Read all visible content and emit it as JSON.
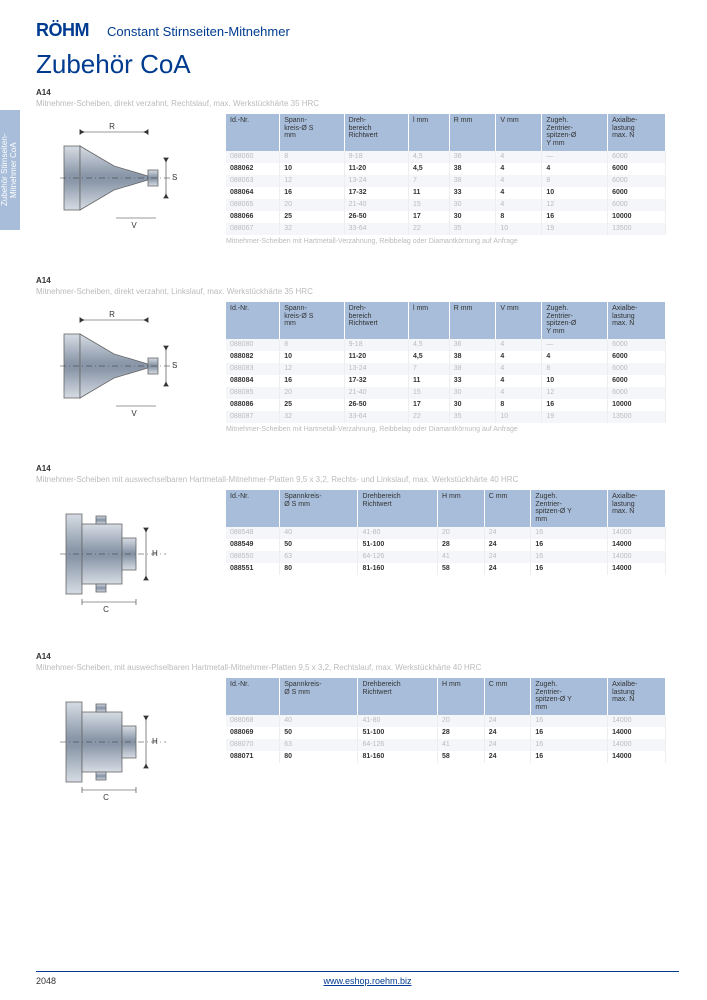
{
  "header": {
    "brand": "RÖHM",
    "title": "Constant Stirnseiten-Mitnehmer"
  },
  "page_title": "Zubehör CoA",
  "side_tab": "Zubehör Stirnseiten-\nMitnehmer CoA",
  "sections": [
    {
      "label": "A14",
      "desc": "Mitnehmer-Scheiben, direkt verzahnt, Rechtslauf, max. Werkstückhärte 35 HRC",
      "diagram": "A",
      "table": {
        "headers": [
          "Id.-Nr.",
          "Spann-\nkreis-Ø S\nmm",
          "Dreh-\nbereich\nRichtwert",
          "l mm",
          "R mm",
          "V mm",
          "Zugeh.\nZentrier-\nspitzen-Ø\nY mm",
          "Axialbe-\nlastung\nmax. N"
        ],
        "rows": [
          [
            "088060",
            "8",
            "9-18",
            "4,5",
            "36",
            "4",
            "—",
            "6000"
          ],
          [
            "088062",
            "10",
            "11-20",
            "4,5",
            "38",
            "4",
            "4",
            "6000"
          ],
          [
            "088063",
            "12",
            "13-24",
            "7",
            "38",
            "4",
            "8",
            "6000"
          ],
          [
            "088064",
            "16",
            "17-32",
            "11",
            "33",
            "4",
            "10",
            "6000"
          ],
          [
            "088065",
            "20",
            "21-40",
            "15",
            "30",
            "4",
            "12",
            "6000"
          ],
          [
            "088066",
            "25",
            "26-50",
            "17",
            "30",
            "8",
            "16",
            "10000"
          ],
          [
            "088067",
            "32",
            "33-64",
            "22",
            "35",
            "10",
            "19",
            "13500"
          ]
        ]
      },
      "note": "Mitnehmer-Scheiben mit Hartmetall-Verzahnung, Reibbelag oder Diamantkörnung auf Anfrage"
    },
    {
      "label": "A14",
      "desc": "Mitnehmer-Scheiben, direkt verzahnt, Linkslauf, max. Werkstückhärte 35 HRC",
      "diagram": "A",
      "table": {
        "headers": [
          "Id.-Nr.",
          "Spann-\nkreis-Ø S\nmm",
          "Dreh-\nbereich\nRichtwert",
          "l mm",
          "R mm",
          "V mm",
          "Zugeh.\nZentrier-\nspitzen-Ø\nY mm",
          "Axialbe-\nlastung\nmax. N"
        ],
        "rows": [
          [
            "088080",
            "8",
            "9-18",
            "4,5",
            "36",
            "4",
            "—",
            "6000"
          ],
          [
            "088082",
            "10",
            "11-20",
            "4,5",
            "38",
            "4",
            "4",
            "6000"
          ],
          [
            "088083",
            "12",
            "13-24",
            "7",
            "38",
            "4",
            "8",
            "6000"
          ],
          [
            "088084",
            "16",
            "17-32",
            "11",
            "33",
            "4",
            "10",
            "6000"
          ],
          [
            "088085",
            "20",
            "21-40",
            "15",
            "30",
            "4",
            "12",
            "6000"
          ],
          [
            "088086",
            "25",
            "26-50",
            "17",
            "30",
            "8",
            "16",
            "10000"
          ],
          [
            "088087",
            "32",
            "33-64",
            "22",
            "35",
            "10",
            "19",
            "13500"
          ]
        ]
      },
      "note": "Mitnehmer-Scheiben mit Hartmetall-Verzahnung, Reibbelag oder Diamantkörnung auf Anfrage"
    },
    {
      "label": "A14",
      "desc": "Mitnehmer-Scheiben mit auswechselbaren Hartmetall-Mitnehmer-Platten 9,5 x 3,2, Rechts- und Linkslauf, max. Werkstückhärte 40 HRC",
      "diagram": "B",
      "table": {
        "headers": [
          "Id.-Nr.",
          "Spannkreis-\nØ S mm",
          "Drehbereich\nRichtwert",
          "H mm",
          "C mm",
          "Zugeh.\nZentrier-\nspitzen-Ø Y\nmm",
          "Axialbe-\nlastung\nmax. N"
        ],
        "rows": [
          [
            "088548",
            "40",
            "41-80",
            "20",
            "24",
            "16",
            "14000"
          ],
          [
            "088549",
            "50",
            "51-100",
            "28",
            "24",
            "16",
            "14000"
          ],
          [
            "088550",
            "63",
            "64-126",
            "41",
            "24",
            "16",
            "14000"
          ],
          [
            "088551",
            "80",
            "81-160",
            "58",
            "24",
            "16",
            "14000"
          ]
        ]
      },
      "note": ""
    },
    {
      "label": "A14",
      "desc": "Mitnehmer-Scheiben, mit auswechselbaren Hartmetall-Mitnehmer-Platten 9,5 x 3,2, Rechtslauf, max. Werkstückhärte 40 HRC",
      "diagram": "B",
      "table": {
        "headers": [
          "Id.-Nr.",
          "Spannkreis-\nØ S mm",
          "Drehbereich\nRichtwert",
          "H mm",
          "C mm",
          "Zugeh.\nZentrier-\nspitzen-Ø Y\nmm",
          "Axialbe-\nlastung\nmax. N"
        ],
        "rows": [
          [
            "088068",
            "40",
            "41-80",
            "20",
            "24",
            "16",
            "14000"
          ],
          [
            "088069",
            "50",
            "51-100",
            "28",
            "24",
            "16",
            "14000"
          ],
          [
            "088070",
            "63",
            "64-126",
            "41",
            "24",
            "16",
            "14000"
          ],
          [
            "088071",
            "80",
            "81-160",
            "58",
            "24",
            "16",
            "14000"
          ]
        ]
      },
      "note": ""
    }
  ],
  "footer": {
    "page": "2048",
    "url": "www.eshop.roehm.biz"
  },
  "colors": {
    "brand": "#003b8f",
    "header_bg": "#a7bdd9",
    "muted": "#bbbbbb",
    "row_alt": "#f4f6f9"
  }
}
